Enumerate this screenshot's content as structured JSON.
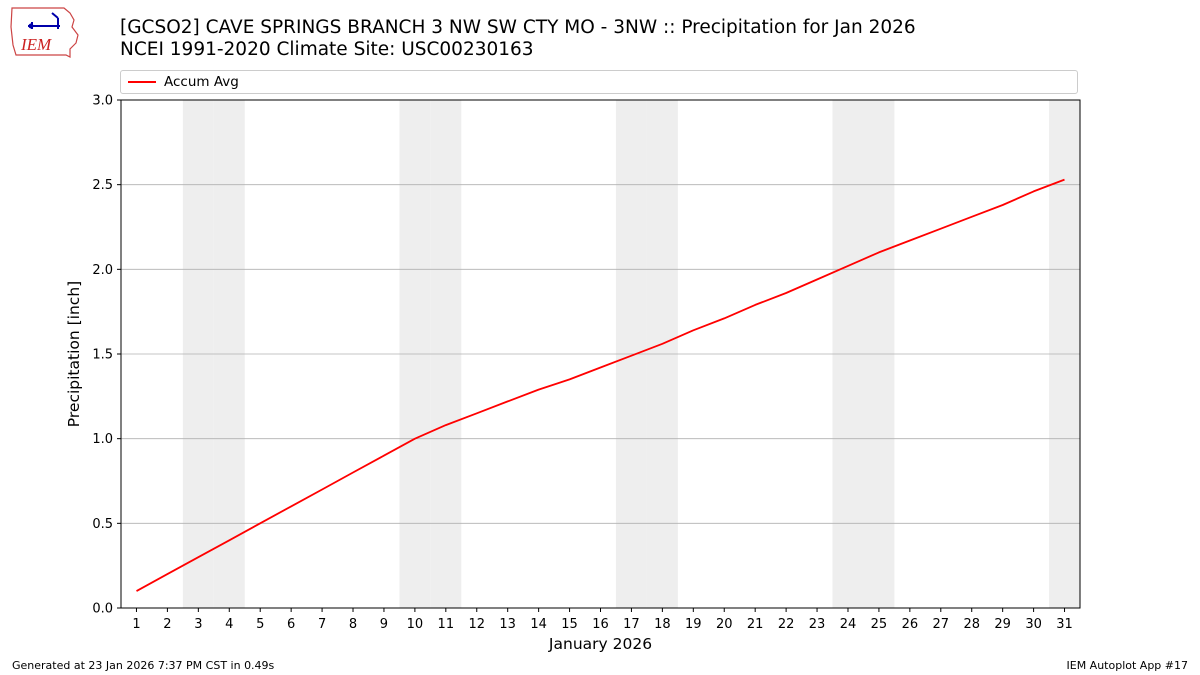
{
  "header": {
    "title_line1": "[GCSO2] CAVE SPRINGS BRANCH 3 NW SW CTY MO - 3NW :: Precipitation for Jan 2026",
    "title_line2": "NCEI 1991-2020 Climate Site: USC00230163"
  },
  "logo": {
    "text": "IEM",
    "icon": "iem-iowa-weather-logo"
  },
  "footer": {
    "generated": "Generated at 23 Jan 2026 7:37 PM CST in 0.49s",
    "app": "IEM Autoplot App #17"
  },
  "colors": {
    "series": "#ff0000",
    "weekend_shade": "#eeeeee",
    "grid": "#b0b0b0"
  },
  "chart_data": {
    "type": "line",
    "xlabel": "January 2026",
    "ylabel": "Precipitation [inch]",
    "xlim": [
      0.5,
      31.5
    ],
    "ylim": [
      0,
      3.0
    ],
    "yticks": [
      0.0,
      0.5,
      1.0,
      1.5,
      2.0,
      2.5,
      3.0
    ],
    "ytick_labels": [
      "0.0",
      "0.5",
      "1.0",
      "1.5",
      "2.0",
      "2.5",
      "3.0"
    ],
    "x": [
      1,
      2,
      3,
      4,
      5,
      6,
      7,
      8,
      9,
      10,
      11,
      12,
      13,
      14,
      15,
      16,
      17,
      18,
      19,
      20,
      21,
      22,
      23,
      24,
      25,
      26,
      27,
      28,
      29,
      30,
      31
    ],
    "xtick_labels": [
      "1",
      "2",
      "3",
      "4",
      "5",
      "6",
      "7",
      "8",
      "9",
      "10",
      "11",
      "12",
      "13",
      "14",
      "15",
      "16",
      "17",
      "18",
      "19",
      "20",
      "21",
      "22",
      "23",
      "24",
      "25",
      "26",
      "27",
      "28",
      "29",
      "30",
      "31"
    ],
    "weekend_days": [
      3,
      4,
      10,
      11,
      17,
      18,
      24,
      25,
      31
    ],
    "grid": "y",
    "legend": "top",
    "series": [
      {
        "name": "Accum Avg",
        "values": [
          0.1,
          0.2,
          0.3,
          0.4,
          0.5,
          0.6,
          0.7,
          0.8,
          0.9,
          1.0,
          1.08,
          1.15,
          1.22,
          1.29,
          1.35,
          1.42,
          1.49,
          1.56,
          1.64,
          1.71,
          1.79,
          1.86,
          1.94,
          2.02,
          2.1,
          2.17,
          2.24,
          2.31,
          2.38,
          2.46,
          2.53
        ]
      }
    ]
  }
}
